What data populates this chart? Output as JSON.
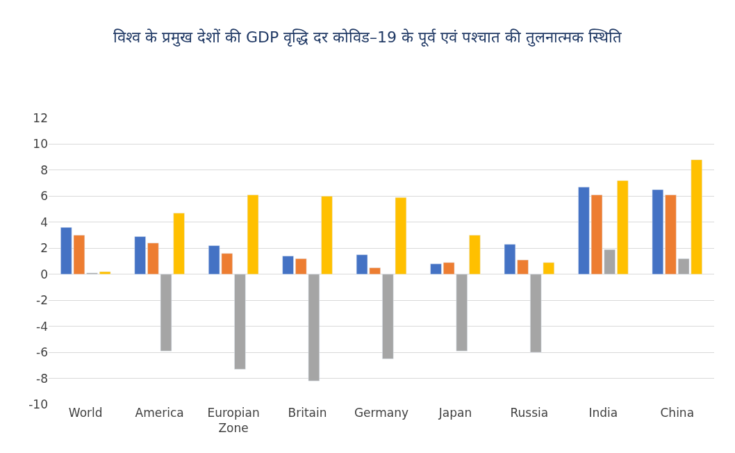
{
  "chart_data": {
    "type": "bar",
    "title": "विश्व के प्रमुख देशों की GDP वृद्धि दर कोविड–19 के पूर्व एवं पश्चात की तुलनात्मक स्थिति",
    "categories": [
      "World",
      "America",
      "Europian Zone",
      "Britain",
      "Germany",
      "Japan",
      "Russia",
      "India",
      "China"
    ],
    "series": [
      {
        "color": "#4472c4",
        "values": [
          3.6,
          2.9,
          2.2,
          1.4,
          1.5,
          0.8,
          2.3,
          6.7,
          6.5
        ]
      },
      {
        "color": "#ed7d31",
        "values": [
          3.0,
          2.4,
          1.6,
          1.2,
          0.5,
          0.9,
          1.1,
          6.1,
          6.1
        ]
      },
      {
        "color": "#a5a5a5",
        "values": [
          0.1,
          -5.9,
          -7.3,
          -8.2,
          -6.5,
          -5.9,
          -6.0,
          1.9,
          1.2
        ]
      },
      {
        "color": "#ffc000",
        "values": [
          0.2,
          4.7,
          6.1,
          6.0,
          5.9,
          3.0,
          0.9,
          7.2,
          8.8
        ]
      }
    ],
    "ylim": [
      -10,
      12
    ],
    "yticks": [
      -10,
      -8,
      -6,
      -4,
      -2,
      0,
      2,
      4,
      6,
      8,
      10,
      12
    ],
    "grid": "y"
  }
}
